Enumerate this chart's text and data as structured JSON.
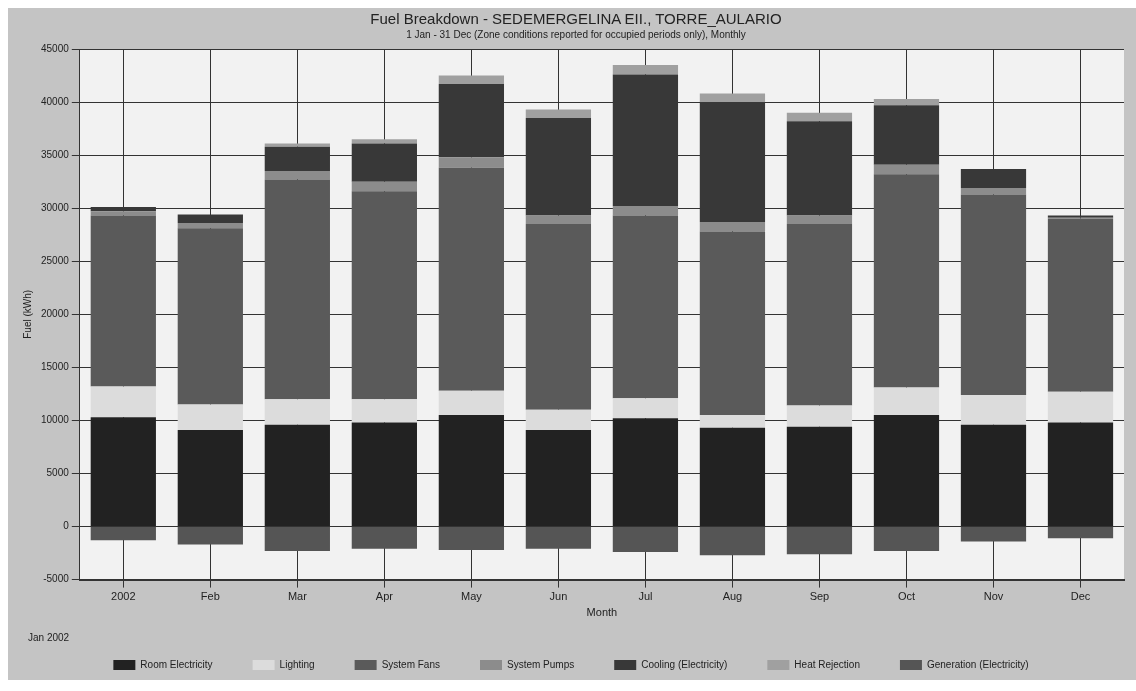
{
  "chart_data": {
    "type": "bar",
    "title": "Fuel Breakdown - SEDEMERGELINA EII., TORRE_AULARIO",
    "subtitle": "1 Jan - 31 Dec (Zone conditions reported for occupied periods only), Monthly",
    "xlabel": "Month",
    "ylabel": "Fuel (kWh)",
    "annotations": [
      "Jan 2002"
    ],
    "categories": [
      "2002",
      "Feb",
      "Mar",
      "Apr",
      "May",
      "Jun",
      "Jul",
      "Aug",
      "Sep",
      "Oct",
      "Nov",
      "Dec"
    ],
    "stacked": true,
    "ylim": [
      -5000,
      45000
    ],
    "yticks": [
      -5000,
      0,
      5000,
      10000,
      15000,
      20000,
      25000,
      30000,
      35000,
      40000,
      45000
    ],
    "grid": true,
    "legend": "bottom",
    "series": [
      {
        "name": "Room Electricity",
        "color": "#222222",
        "values": [
          10300,
          9100,
          9600,
          9800,
          10500,
          9100,
          10200,
          9300,
          9400,
          10500,
          9600,
          9800
        ]
      },
      {
        "name": "Lighting",
        "color": "#dcdcdc",
        "values": [
          2900,
          2400,
          2400,
          2200,
          2300,
          1900,
          1900,
          1200,
          2000,
          2600,
          2800,
          2900
        ]
      },
      {
        "name": "System Fans",
        "color": "#5a5a5a",
        "values": [
          16100,
          16600,
          20700,
          19600,
          21000,
          17500,
          17200,
          17300,
          17100,
          20100,
          18900,
          16300
        ]
      },
      {
        "name": "System Pumps",
        "color": "#8c8c8c",
        "values": [
          400,
          500,
          800,
          900,
          1000,
          800,
          900,
          900,
          800,
          900,
          600,
          100
        ]
      },
      {
        "name": "Cooling (Electricity)",
        "color": "#383838",
        "values": [
          400,
          800,
          2300,
          3600,
          6900,
          9200,
          12400,
          11300,
          8900,
          5600,
          1800,
          200
        ]
      },
      {
        "name": "Heat Rejection",
        "color": "#a0a0a0",
        "values": [
          0,
          0,
          300,
          400,
          800,
          800,
          900,
          800,
          800,
          600,
          0,
          0
        ]
      },
      {
        "name": "Generation (Electricity)",
        "color": "#555555",
        "values": [
          -1300,
          -1700,
          -2300,
          -2100,
          -2200,
          -2100,
          -2400,
          -2700,
          -2600,
          -2300,
          -1400,
          -1100
        ]
      }
    ]
  }
}
